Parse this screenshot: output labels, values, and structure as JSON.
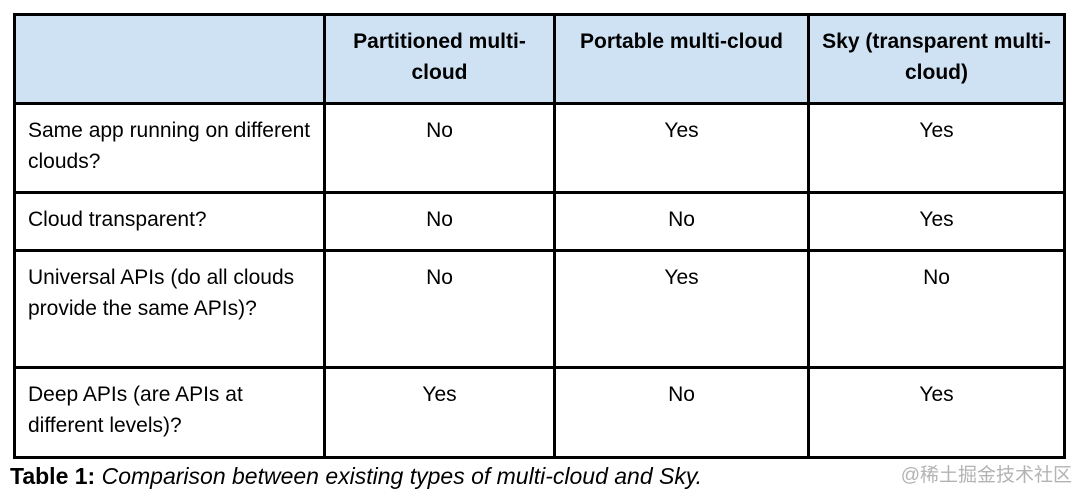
{
  "table": {
    "header_bg_color": "#cfe2f3",
    "border_color": "#000000",
    "header": {
      "corner": "",
      "columns": [
        "Partitioned multi-cloud",
        "Portable multi-cloud",
        "Sky (transparent multi-cloud)"
      ]
    },
    "rows": [
      {
        "label": "Same app running on different clouds?",
        "values": [
          "No",
          "Yes",
          "Yes"
        ]
      },
      {
        "label": "Cloud transparent?",
        "values": [
          "No",
          "No",
          "Yes"
        ]
      },
      {
        "label": "Universal APIs (do all clouds provide the same APIs)?",
        "values": [
          "No",
          "Yes",
          "No"
        ]
      },
      {
        "label": "Deep APIs (are APIs at different levels)?",
        "values": [
          "Yes",
          "No",
          "Yes"
        ]
      }
    ]
  },
  "caption": {
    "label": "Table 1:",
    "text": " Comparison between existing types of multi-cloud and Sky."
  },
  "watermark": {
    "text": "@稀土掘金技术社区"
  }
}
